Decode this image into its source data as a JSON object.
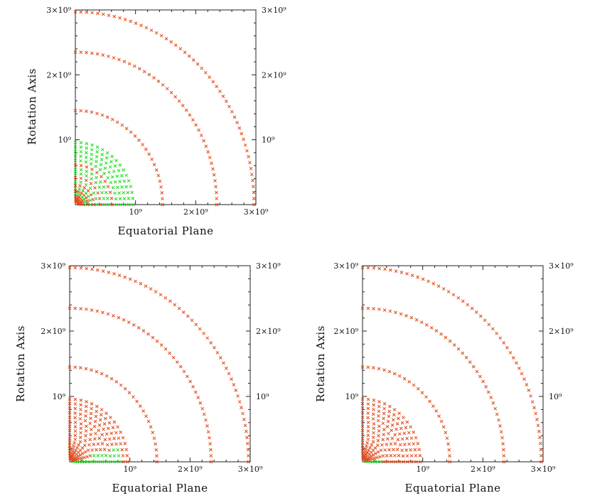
{
  "chart_data": [
    {
      "type": "scatter",
      "xlabel": "Equatorial Plane",
      "ylabel": "Rotation Axis",
      "xlim": [
        0,
        3000000000
      ],
      "ylim": [
        0,
        3000000000
      ],
      "grid": false,
      "x_ticks": [
        {
          "value": 1000000000,
          "label": "10⁹"
        },
        {
          "value": 2000000000,
          "label": "2×10⁹"
        },
        {
          "value": 3000000000,
          "label": "3×10⁹"
        }
      ],
      "y_ticks": [
        {
          "value": 1000000000,
          "label": "10⁹"
        },
        {
          "value": 2000000000,
          "label": "2×10⁹"
        },
        {
          "value": 3000000000,
          "label": "3×10⁹"
        }
      ],
      "shells": [
        {
          "r": 2970000000,
          "color": "#e04a1a"
        },
        {
          "r": 2350000000,
          "color": "#e04a1a"
        },
        {
          "r": 1450000000,
          "color": "#e04a1a"
        },
        {
          "r": 960000000,
          "color": "#22dd22"
        },
        {
          "r": 890000000,
          "color": "#22dd22"
        },
        {
          "r": 820000000,
          "color": "#22dd22"
        },
        {
          "r": 750000000,
          "color": "#22dd22"
        },
        {
          "r": 680000000,
          "color": "#22dd22"
        },
        {
          "r": 610000000,
          "color": "#e04a1a"
        },
        {
          "r": 545000000,
          "color": "#22dd22"
        },
        {
          "r": 480000000,
          "color": "#22dd22"
        },
        {
          "r": 415000000,
          "color": "#e04a1a"
        },
        {
          "r": 355000000,
          "color": "#22dd22"
        },
        {
          "r": 300000000,
          "color": "#e04a1a"
        },
        {
          "r": 250000000,
          "color": "#22dd22"
        },
        {
          "r": 205000000,
          "color": "#e04a1a"
        },
        {
          "r": 165000000,
          "color": "#22dd22"
        },
        {
          "r": 130000000,
          "color": "#e04a1a"
        },
        {
          "r": 100000000,
          "color": "#e04a1a"
        },
        {
          "r": 75000000,
          "color": "#e04a1a"
        },
        {
          "r": 50000000,
          "color": "#e04a1a"
        }
      ]
    },
    {
      "type": "scatter",
      "xlabel": "Equatorial Plane",
      "ylabel": "Rotation Axis",
      "xlim": [
        0,
        3000000000
      ],
      "ylim": [
        0,
        3000000000
      ],
      "grid": false,
      "x_ticks": [
        {
          "value": 1000000000,
          "label": "10⁹"
        },
        {
          "value": 2000000000,
          "label": "2×10⁹"
        },
        {
          "value": 3000000000,
          "label": "3×10⁹"
        }
      ],
      "y_ticks": [
        {
          "value": 1000000000,
          "label": "10⁹"
        },
        {
          "value": 2000000000,
          "label": "2×10⁹"
        },
        {
          "value": 3000000000,
          "label": "3×10⁹"
        }
      ],
      "shells": [
        {
          "r": 2970000000,
          "color": "#e04a1a"
        },
        {
          "r": 2350000000,
          "color": "#e04a1a"
        },
        {
          "r": 1450000000,
          "color": "#e04a1a"
        },
        {
          "r": 960000000,
          "color": "#e04a1a"
        },
        {
          "r": 890000000,
          "color": "#e04a1a"
        },
        {
          "r": 820000000,
          "color": "#e04a1a"
        },
        {
          "r": 750000000,
          "color": "#e04a1a"
        },
        {
          "r": 680000000,
          "color": "#e04a1a"
        },
        {
          "r": 610000000,
          "color": "#e04a1a"
        },
        {
          "r": 545000000,
          "color": "#e04a1a"
        },
        {
          "r": 480000000,
          "color": "#e04a1a"
        },
        {
          "r": 415000000,
          "color": "#e04a1a"
        },
        {
          "r": 355000000,
          "color": "#e04a1a"
        },
        {
          "r": 300000000,
          "color": "#e04a1a"
        },
        {
          "r": 250000000,
          "color": "#e04a1a"
        },
        {
          "r": 205000000,
          "color": "#e04a1a"
        },
        {
          "r": 165000000,
          "color": "#e04a1a"
        },
        {
          "r": 130000000,
          "color": "#e04a1a"
        },
        {
          "r": 100000000,
          "color": "#e04a1a"
        },
        {
          "r": 75000000,
          "color": "#e04a1a"
        },
        {
          "r": 50000000,
          "color": "#e04a1a"
        }
      ],
      "equatorial_band": {
        "color": "#22dd22",
        "r_max": 820000000,
        "max_angle_deg": 14
      }
    },
    {
      "type": "scatter",
      "xlabel": "Equatorial Plane",
      "ylabel": "Rotation Axis",
      "xlim": [
        0,
        3000000000
      ],
      "ylim": [
        0,
        3000000000
      ],
      "grid": false,
      "x_ticks": [
        {
          "value": 1000000000,
          "label": "10⁹"
        },
        {
          "value": 2000000000,
          "label": "2×10⁹"
        },
        {
          "value": 3000000000,
          "label": "3×10⁹"
        }
      ],
      "y_ticks": [
        {
          "value": 1000000000,
          "label": "10⁹"
        },
        {
          "value": 2000000000,
          "label": "2×10⁹"
        },
        {
          "value": 3000000000,
          "label": "3×10⁹"
        }
      ],
      "shells": [
        {
          "r": 2970000000,
          "color": "#e04a1a"
        },
        {
          "r": 2350000000,
          "color": "#e04a1a"
        },
        {
          "r": 1450000000,
          "color": "#e04a1a"
        },
        {
          "r": 960000000,
          "color": "#e04a1a"
        },
        {
          "r": 890000000,
          "color": "#e04a1a"
        },
        {
          "r": 820000000,
          "color": "#e04a1a"
        },
        {
          "r": 750000000,
          "color": "#e04a1a"
        },
        {
          "r": 680000000,
          "color": "#e04a1a"
        },
        {
          "r": 610000000,
          "color": "#e04a1a"
        },
        {
          "r": 545000000,
          "color": "#e04a1a"
        },
        {
          "r": 480000000,
          "color": "#e04a1a"
        },
        {
          "r": 415000000,
          "color": "#e04a1a"
        },
        {
          "r": 355000000,
          "color": "#e04a1a"
        },
        {
          "r": 300000000,
          "color": "#e04a1a"
        },
        {
          "r": 250000000,
          "color": "#e04a1a"
        },
        {
          "r": 205000000,
          "color": "#e04a1a"
        },
        {
          "r": 165000000,
          "color": "#e04a1a"
        },
        {
          "r": 130000000,
          "color": "#e04a1a"
        },
        {
          "r": 100000000,
          "color": "#e04a1a"
        },
        {
          "r": 75000000,
          "color": "#e04a1a"
        },
        {
          "r": 50000000,
          "color": "#e04a1a"
        }
      ],
      "equatorial_band": {
        "color": "#22dd22",
        "r_max": 300000000,
        "max_angle_deg": 10
      }
    }
  ]
}
